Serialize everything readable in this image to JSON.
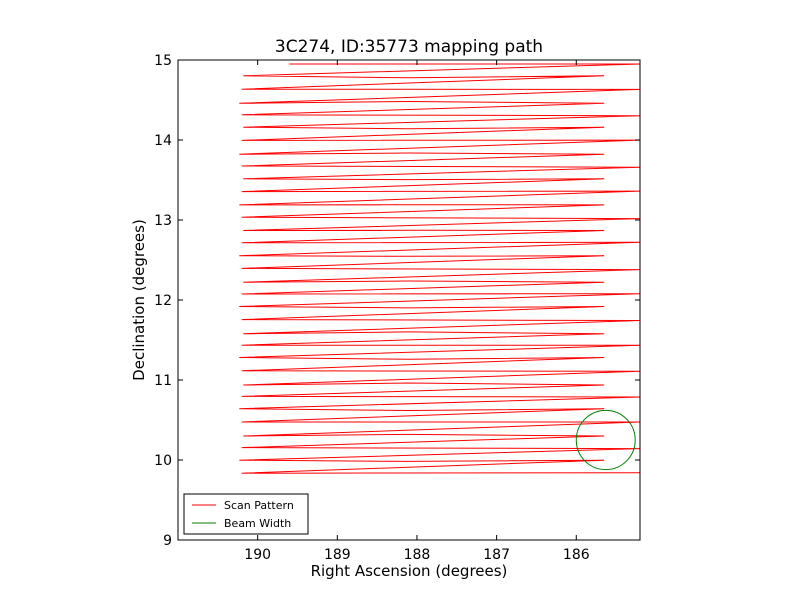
{
  "chart_data": {
    "type": "line",
    "title": "3C274, ID:35773 mapping path",
    "xlabel": "Right Ascension (degrees)",
    "ylabel": "Declination (degrees)",
    "xlim": [
      191.0,
      185.2
    ],
    "ylim": [
      9,
      15
    ],
    "x_inverted": true,
    "xticks": [
      190,
      189,
      188,
      187,
      186
    ],
    "yticks": [
      9,
      10,
      11,
      12,
      13,
      14,
      15
    ],
    "grid": false,
    "legend_position": "lower-left",
    "series": [
      {
        "name": "Scan Pattern",
        "color": "#ff0000",
        "scan": {
          "first_row_start": [
            189.6,
            14.95
          ],
          "row_ra": [
            190.2,
            185.2
          ],
          "row_dec_top": 14.95,
          "row_dec_bottom": 9.83,
          "row_count": 33
        }
      },
      {
        "name": "Beam Width",
        "color": "#008000",
        "circle": {
          "center": [
            185.63,
            10.25
          ],
          "radius_deg": 0.37
        }
      }
    ]
  }
}
